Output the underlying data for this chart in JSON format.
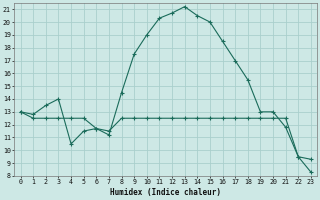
{
  "xlabel": "Humidex (Indice chaleur)",
  "bg_color": "#cde8e5",
  "grid_color": "#aacfcc",
  "line_color": "#1a6b5a",
  "xlim": [
    -0.5,
    23.5
  ],
  "ylim": [
    8,
    21.5
  ],
  "yticks": [
    8,
    9,
    10,
    11,
    12,
    13,
    14,
    15,
    16,
    17,
    18,
    19,
    20,
    21
  ],
  "xticks": [
    0,
    1,
    2,
    3,
    4,
    5,
    6,
    7,
    8,
    9,
    10,
    11,
    12,
    13,
    14,
    15,
    16,
    17,
    18,
    19,
    20,
    21,
    22,
    23
  ],
  "line1_x": [
    0,
    1,
    2,
    3,
    4,
    5,
    6,
    7,
    8,
    9,
    10,
    11,
    12,
    13,
    14,
    15,
    16,
    17,
    18,
    19,
    20,
    21,
    22,
    23
  ],
  "line1_y": [
    13.0,
    12.8,
    13.5,
    14.0,
    10.5,
    11.5,
    11.7,
    11.2,
    14.5,
    17.5,
    19.0,
    20.3,
    20.7,
    21.2,
    20.5,
    20.0,
    18.5,
    17.0,
    15.5,
    13.0,
    13.0,
    11.8,
    9.5,
    9.3
  ],
  "line2_x": [
    0,
    1,
    2,
    3,
    4,
    5,
    6,
    7,
    8,
    9,
    10,
    11,
    12,
    13,
    14,
    15,
    16,
    17,
    18,
    19,
    20,
    21,
    22,
    23
  ],
  "line2_y": [
    13.0,
    12.5,
    12.5,
    12.5,
    12.5,
    12.5,
    11.7,
    11.5,
    12.5,
    12.5,
    12.5,
    12.5,
    12.5,
    12.5,
    12.5,
    12.5,
    12.5,
    12.5,
    12.5,
    12.5,
    12.5,
    12.5,
    9.5,
    8.3
  ]
}
